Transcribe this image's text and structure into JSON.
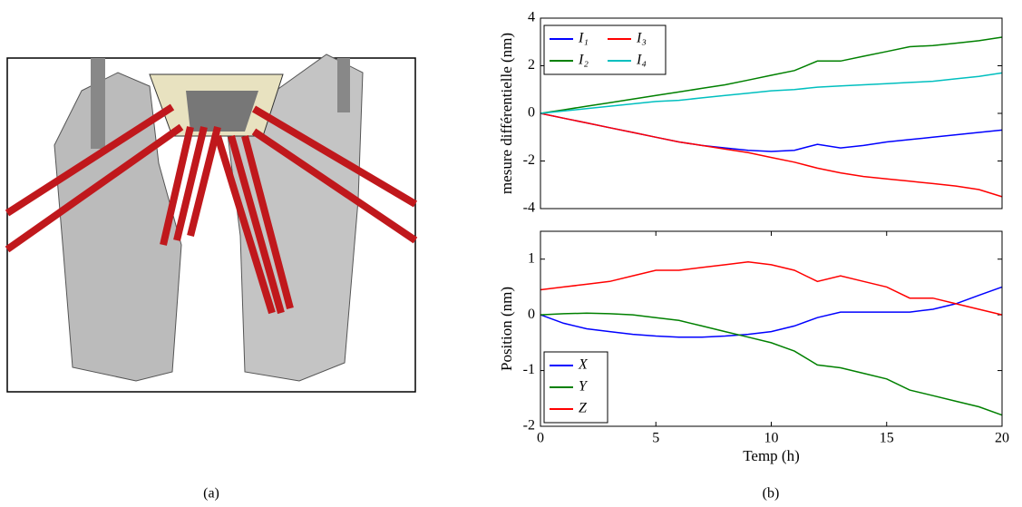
{
  "captions": [
    "(a)",
    "(b)"
  ],
  "chart_data": [
    {
      "type": "line",
      "ylabel": "mesure différentielle (nm)",
      "xlim": [
        0,
        20
      ],
      "ylim": [
        -4,
        4
      ],
      "yticks": [
        -4,
        -2,
        0,
        2,
        4
      ],
      "legend": "upper left",
      "legend_columns": 2,
      "x": [
        0,
        1,
        2,
        3,
        4,
        5,
        6,
        7,
        8,
        9,
        10,
        11,
        12,
        13,
        14,
        15,
        16,
        17,
        18,
        19,
        20
      ],
      "series": [
        {
          "name": "I₁",
          "color": "#0000ff",
          "values": [
            0,
            -0.2,
            -0.4,
            -0.6,
            -0.8,
            -1.0,
            -1.2,
            -1.35,
            -1.45,
            -1.55,
            -1.6,
            -1.55,
            -1.3,
            -1.45,
            -1.35,
            -1.2,
            -1.1,
            -1.0,
            -0.9,
            -0.8,
            -0.7
          ]
        },
        {
          "name": "I₂",
          "color": "#008000",
          "values": [
            0,
            0.15,
            0.3,
            0.45,
            0.6,
            0.75,
            0.9,
            1.05,
            1.2,
            1.4,
            1.6,
            1.8,
            2.2,
            2.2,
            2.4,
            2.6,
            2.8,
            2.85,
            2.95,
            3.05,
            3.2
          ]
        },
        {
          "name": "I₃",
          "color": "#ff0000",
          "values": [
            0,
            -0.2,
            -0.4,
            -0.6,
            -0.8,
            -1.0,
            -1.2,
            -1.35,
            -1.5,
            -1.65,
            -1.85,
            -2.05,
            -2.3,
            -2.5,
            -2.65,
            -2.75,
            -2.85,
            -2.95,
            -3.05,
            -3.2,
            -3.5
          ]
        },
        {
          "name": "I₄",
          "color": "#00bfbf",
          "values": [
            0,
            0.1,
            0.2,
            0.3,
            0.4,
            0.5,
            0.55,
            0.65,
            0.75,
            0.85,
            0.95,
            1.0,
            1.1,
            1.15,
            1.2,
            1.25,
            1.3,
            1.35,
            1.45,
            1.55,
            1.7
          ]
        }
      ]
    },
    {
      "type": "line",
      "ylabel": "Position (nm)",
      "xlabel": "Temp (h)",
      "xlim": [
        0,
        20
      ],
      "ylim": [
        -2,
        1.5
      ],
      "xticks": [
        0,
        5,
        10,
        15,
        20
      ],
      "yticks": [
        -2,
        -1,
        0,
        1
      ],
      "legend": "lower left",
      "legend_columns": 1,
      "x": [
        0,
        1,
        2,
        3,
        4,
        5,
        6,
        7,
        8,
        9,
        10,
        11,
        12,
        13,
        14,
        15,
        16,
        17,
        18,
        19,
        20
      ],
      "series": [
        {
          "name": "X",
          "color": "#0000ff",
          "values": [
            0,
            -0.15,
            -0.25,
            -0.3,
            -0.35,
            -0.38,
            -0.4,
            -0.4,
            -0.38,
            -0.35,
            -0.3,
            -0.2,
            -0.05,
            0.05,
            0.05,
            0.05,
            0.05,
            0.1,
            0.2,
            0.35,
            0.5
          ]
        },
        {
          "name": "Y",
          "color": "#008000",
          "values": [
            0,
            0.02,
            0.03,
            0.02,
            0,
            -0.05,
            -0.1,
            -0.2,
            -0.3,
            -0.4,
            -0.5,
            -0.65,
            -0.9,
            -0.95,
            -1.05,
            -1.15,
            -1.35,
            -1.45,
            -1.55,
            -1.65,
            -1.8
          ]
        },
        {
          "name": "Z",
          "color": "#ff0000",
          "values": [
            0.45,
            0.5,
            0.55,
            0.6,
            0.7,
            0.8,
            0.8,
            0.85,
            0.9,
            0.95,
            0.9,
            0.8,
            0.6,
            0.7,
            0.6,
            0.5,
            0.3,
            0.3,
            0.2,
            0.1,
            0.0
          ]
        }
      ]
    }
  ]
}
